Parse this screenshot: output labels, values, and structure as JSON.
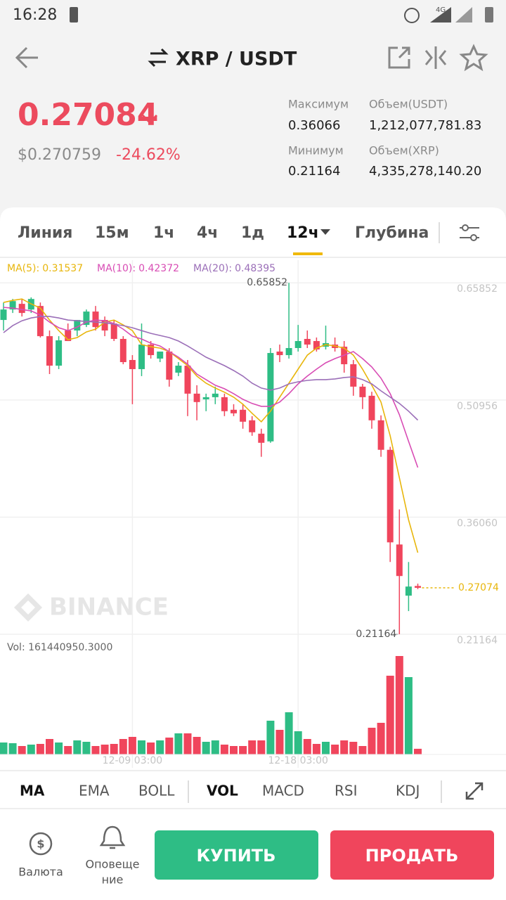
{
  "status_bar": {
    "time": "16:28",
    "network": "4G"
  },
  "header": {
    "title": "XRP / USDT"
  },
  "ticker": {
    "price": "0.27084",
    "price_usd": "$0.270759",
    "change": "-24.62%",
    "stats": [
      {
        "label": "Максимум",
        "value": "0.36066"
      },
      {
        "label": "Объем(USDT)",
        "value": "1,212,077,781.83"
      },
      {
        "label": "Минимум",
        "value": "0.21164"
      },
      {
        "label": "Объем(XRP)",
        "value": "4,335,278,140.20"
      }
    ]
  },
  "tabs": [
    "Линия",
    "15м",
    "1ч",
    "4ч",
    "1д",
    "12ч",
    "Глубина"
  ],
  "watermark": "BINANCE",
  "chart_data": {
    "type": "candlestick",
    "categories": [
      null,
      null,
      null,
      null,
      null,
      null,
      null,
      null,
      null,
      null,
      null,
      null,
      null,
      null,
      "12-09 03:00",
      null,
      null,
      null,
      null,
      null,
      null,
      null,
      null,
      null,
      null,
      null,
      null,
      null,
      null,
      null,
      null,
      null,
      "12-18 03:00",
      null,
      null,
      null,
      null,
      null,
      null,
      null,
      null,
      null,
      null,
      null,
      null,
      null
    ],
    "open": [
      0.6113,
      0.6246,
      0.6318,
      0.6246,
      0.6291,
      0.5907,
      0.5532,
      0.5979,
      0.5979,
      0.605,
      0.622,
      0.6113,
      0.6068,
      0.5872,
      0.5604,
      0.5488,
      0.58,
      0.5622,
      0.5711,
      0.5443,
      0.5532,
      0.5176,
      0.5104,
      0.5131,
      0.5131,
      0.4971,
      0.4971,
      0.4837,
      0.4667,
      0.4569,
      0.5711,
      0.5666,
      0.5756,
      0.5872,
      0.5845,
      0.5773,
      0.58,
      0.5773,
      0.555,
      0.5265,
      0.5149,
      0.4837,
      0.4462,
      0.3258,
      0.2607,
      0.273
    ],
    "high": [
      0.6335,
      0.638,
      0.638,
      0.64,
      0.6335,
      0.5979,
      0.5907,
      0.6068,
      0.6113,
      0.6246,
      0.6291,
      0.6157,
      0.6113,
      0.5907,
      0.5666,
      0.6068,
      0.5845,
      0.5711,
      0.5754,
      0.5577,
      0.5604,
      0.5283,
      0.5176,
      0.5265,
      0.5176,
      0.5042,
      0.5042,
      0.489,
      0.473,
      0.5756,
      0.58,
      0.65852,
      0.605,
      0.5979,
      0.589,
      0.6041,
      0.589,
      0.5845,
      0.5604,
      0.53,
      0.52,
      0.49,
      0.45,
      0.3704,
      0.3035,
      0.276
    ],
    "low": [
      0.5979,
      0.6202,
      0.6157,
      0.6202,
      0.589,
      0.5425,
      0.5488,
      0.5845,
      0.5907,
      0.6023,
      0.5979,
      0.5907,
      0.5845,
      0.555,
      0.5042,
      0.5399,
      0.5622,
      0.5577,
      0.5265,
      0.5399,
      0.489,
      0.4837,
      0.4953,
      0.5042,
      0.489,
      0.489,
      0.473,
      0.464,
      0.4373,
      0.4551,
      0.5577,
      0.5622,
      0.5711,
      0.5756,
      0.5711,
      0.5738,
      0.5711,
      0.5443,
      0.5149,
      0.498,
      0.473,
      0.4373,
      0.3035,
      0.21164,
      0.2411,
      0.269
    ],
    "close": [
      0.6246,
      0.6353,
      0.6202,
      0.638,
      0.5907,
      0.5532,
      0.5854,
      0.5845,
      0.6113,
      0.622,
      0.6023,
      0.5979,
      0.5872,
      0.5577,
      0.5488,
      0.58,
      0.5666,
      0.5711,
      0.5354,
      0.5532,
      0.5176,
      0.5069,
      0.5131,
      0.5176,
      0.4953,
      0.4926,
      0.4819,
      0.4685,
      0.4551,
      0.5693,
      0.5666,
      0.5756,
      0.5845,
      0.58,
      0.5738,
      0.5818,
      0.5756,
      0.555,
      0.5265,
      0.5131,
      0.4837,
      0.4462,
      0.3285,
      0.2857,
      0.2723,
      0.27074
    ],
    "up_color": "#2ebd85",
    "down_color": "#f0455c",
    "series": [
      {
        "name": "MA(5):",
        "color": "#e8b60c",
        "values": [
          0.6335,
          0.6362,
          0.638,
          0.6317,
          0.6264,
          0.6112,
          0.5978,
          0.5862,
          0.5889,
          0.5961,
          0.5996,
          0.6086,
          0.6112,
          0.605,
          0.5978,
          0.58,
          0.5773,
          0.5755,
          0.5711,
          0.5622,
          0.5532,
          0.5399,
          0.5309,
          0.5247,
          0.5194,
          0.5131,
          0.5042,
          0.4926,
          0.4819,
          0.4953,
          0.5131,
          0.5309,
          0.5488,
          0.5666,
          0.5755,
          0.58,
          0.5782,
          0.5755,
          0.5666,
          0.5488,
          0.5283,
          0.5069,
          0.464,
          0.4105,
          0.357,
          0.31537
        ]
      },
      {
        "name": "MA(10):",
        "color": "#d84cb4",
        "values": [
          0.6273,
          0.6264,
          0.6246,
          0.6228,
          0.6175,
          0.6086,
          0.6014,
          0.5978,
          0.6023,
          0.6086,
          0.6112,
          0.6103,
          0.6068,
          0.5996,
          0.5907,
          0.5871,
          0.5818,
          0.5782,
          0.5711,
          0.564,
          0.555,
          0.5425,
          0.5354,
          0.5283,
          0.5238,
          0.5176,
          0.5104,
          0.5051,
          0.5015,
          0.5015,
          0.5069,
          0.5176,
          0.53,
          0.5399,
          0.5488,
          0.5568,
          0.5622,
          0.5666,
          0.5711,
          0.5622,
          0.5515,
          0.5372,
          0.5176,
          0.4908,
          0.4569,
          0.42372
        ]
      },
      {
        "name": "MA(20):",
        "color": "#9b6fb8",
        "values": [
          0.5952,
          0.6041,
          0.6103,
          0.6139,
          0.6157,
          0.6157,
          0.6139,
          0.6112,
          0.6103,
          0.6094,
          0.6086,
          0.6077,
          0.6059,
          0.6041,
          0.6014,
          0.5978,
          0.5943,
          0.5916,
          0.5889,
          0.5845,
          0.5782,
          0.5711,
          0.564,
          0.5586,
          0.5532,
          0.547,
          0.5399,
          0.5309,
          0.5247,
          0.522,
          0.5247,
          0.53,
          0.5327,
          0.5345,
          0.5354,
          0.5354,
          0.5363,
          0.5381,
          0.539,
          0.5354,
          0.53,
          0.5211,
          0.5131,
          0.5051,
          0.4953,
          0.48395
        ]
      }
    ],
    "ylim": [
      0.209,
      0.665
    ],
    "yticks": [
      0.65852,
      0.50956,
      {
        "value": 0.3606,
        "label": "0.36060"
      },
      0.21164
    ],
    "grid": true,
    "last_price": 0.27074,
    "volume": {
      "label": "Vol: 161440950.3000",
      "values": [
        340000000,
        320000000,
        240000000,
        280000000,
        300000000,
        440000000,
        340000000,
        240000000,
        400000000,
        360000000,
        240000000,
        280000000,
        300000000,
        440000000,
        500000000,
        400000000,
        340000000,
        400000000,
        480000000,
        600000000,
        600000000,
        500000000,
        360000000,
        400000000,
        280000000,
        240000000,
        240000000,
        400000000,
        400000000,
        960000000,
        700000000,
        1200000000,
        660000000,
        440000000,
        300000000,
        360000000,
        280000000,
        400000000,
        360000000,
        240000000,
        760000000,
        900000000,
        2240000000,
        2800000000,
        2200000000,
        161440950.3
      ]
    }
  },
  "indicators": [
    "MA",
    "EMA",
    "BOLL",
    "VOL",
    "MACD",
    "RSI",
    "KDJ"
  ],
  "bottom_bar": {
    "currency": "Валюта",
    "alerts": [
      "Оповеще",
      "ние"
    ],
    "buy": "КУПИТЬ",
    "sell": "ПРОДАТЬ"
  }
}
